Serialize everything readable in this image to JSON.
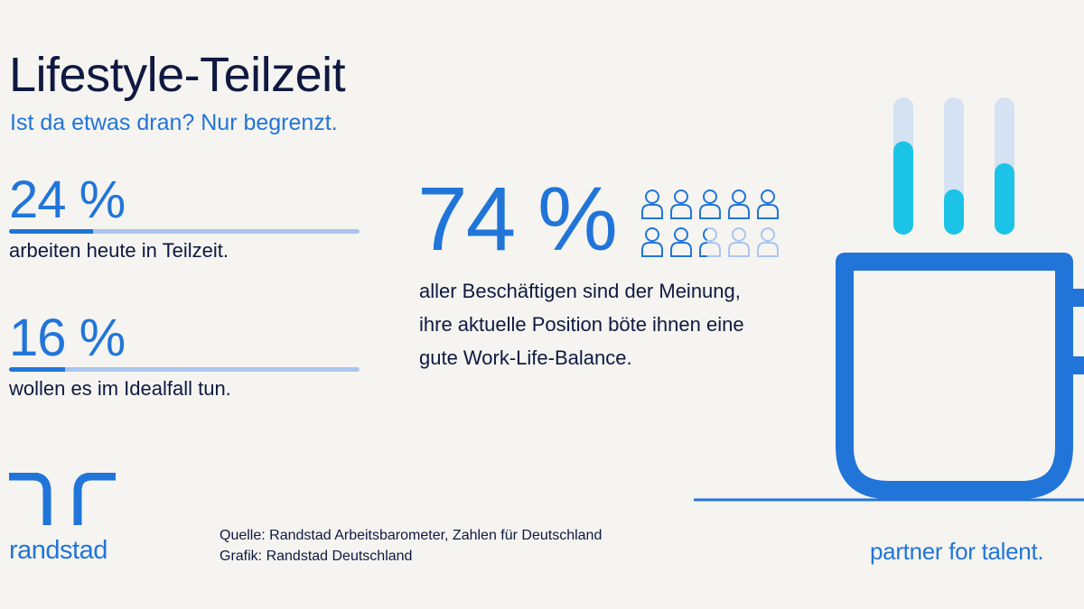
{
  "header": {
    "title": "Lifestyle-Teilzeit",
    "subtitle": "Ist da etwas dran? Nur begrenzt."
  },
  "stats": [
    {
      "value": "24 %",
      "description": "arbeiten heute in Teilzeit.",
      "fraction": 0.24
    },
    {
      "value": "16 %",
      "description": "wollen es im Idealfall tun.",
      "fraction": 0.16
    }
  ],
  "highlight": {
    "value": "74 %",
    "description": "aller Beschäftigen sind der Meinung, ihre aktuelle Position böte ihnen eine gute Work-Life-Balance.",
    "icon": "person-icon",
    "people_total": 10,
    "people_filled_fraction": 0.74
  },
  "steam_levels": [
    0.68,
    0.33,
    0.52
  ],
  "footer": {
    "logo_name": "randstad",
    "source_lines": [
      "Quelle: Randstad Arbeitsbarometer, Zahlen für Deutschland",
      "Grafik: Randstad Deutschland"
    ],
    "slogan": "partner for talent."
  },
  "colors": {
    "background": "#f5f4f0",
    "navy": "#0f1941",
    "brand_blue": "#2175d9",
    "light_blue": "#a9c6ee",
    "steam_cyan": "#1bc4e6",
    "steam_track": "#d4e2f4"
  }
}
